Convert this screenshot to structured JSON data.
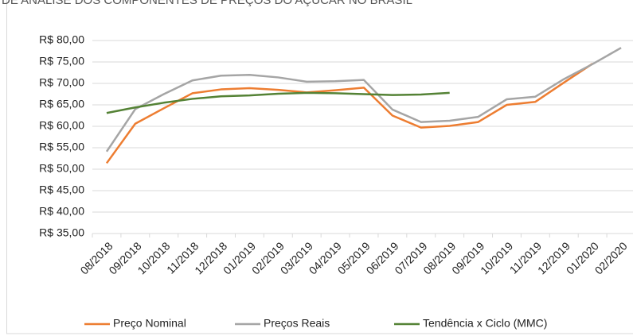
{
  "chart_data": {
    "type": "line",
    "title": "DE ANÁLISE DOS COMPONENTES DE PREÇOS DO AÇÚCAR NO BRASIL",
    "categories": [
      "08/2018",
      "09/2018",
      "10/2018",
      "11/2018",
      "12/2018",
      "01/2019",
      "02/2019",
      "03/2019",
      "04/2019",
      "05/2019",
      "06/2019",
      "07/2019",
      "08/2019",
      "09/2019",
      "10/2019",
      "11/2019",
      "12/2019",
      "01/2020",
      "02/2020"
    ],
    "series": [
      {
        "name": "Preço Nominal",
        "color": "#ed7d31",
        "values": [
          51.4,
          60.6,
          64.2,
          67.7,
          68.6,
          68.9,
          68.5,
          67.9,
          68.4,
          69.0,
          62.5,
          59.7,
          60.1,
          61.0,
          65.0,
          65.7,
          70.2,
          74.6,
          null
        ]
      },
      {
        "name": "Preços Reais",
        "color": "#a5a5a5",
        "values": [
          54.1,
          64.0,
          67.5,
          70.7,
          71.8,
          72.0,
          71.4,
          70.4,
          70.5,
          70.8,
          63.9,
          61.0,
          61.3,
          62.2,
          66.3,
          66.9,
          71.0,
          74.5,
          78.3
        ]
      },
      {
        "name": "Tendência x Ciclo (MMC)",
        "color": "#548235",
        "values": [
          63.1,
          64.4,
          65.5,
          66.4,
          67.0,
          67.2,
          67.6,
          67.8,
          67.7,
          67.5,
          67.3,
          67.4,
          67.8,
          null,
          null,
          null,
          null,
          null,
          null
        ]
      }
    ],
    "ylim": [
      35,
      80
    ],
    "yticks": [
      {
        "value": 35,
        "label": "R$ 35,00"
      },
      {
        "value": 40,
        "label": "R$ 40,00"
      },
      {
        "value": 45,
        "label": "R$ 45,00"
      },
      {
        "value": 50,
        "label": "R$ 50,00"
      },
      {
        "value": 55,
        "label": "R$ 55,00"
      },
      {
        "value": 60,
        "label": "R$ 60,00"
      },
      {
        "value": 65,
        "label": "R$ 65,00"
      },
      {
        "value": 70,
        "label": "R$ 70,00"
      },
      {
        "value": 75,
        "label": "R$ 75,00"
      },
      {
        "value": 80,
        "label": "R$ 80,00"
      }
    ],
    "grid": true,
    "legend": "bottom"
  }
}
